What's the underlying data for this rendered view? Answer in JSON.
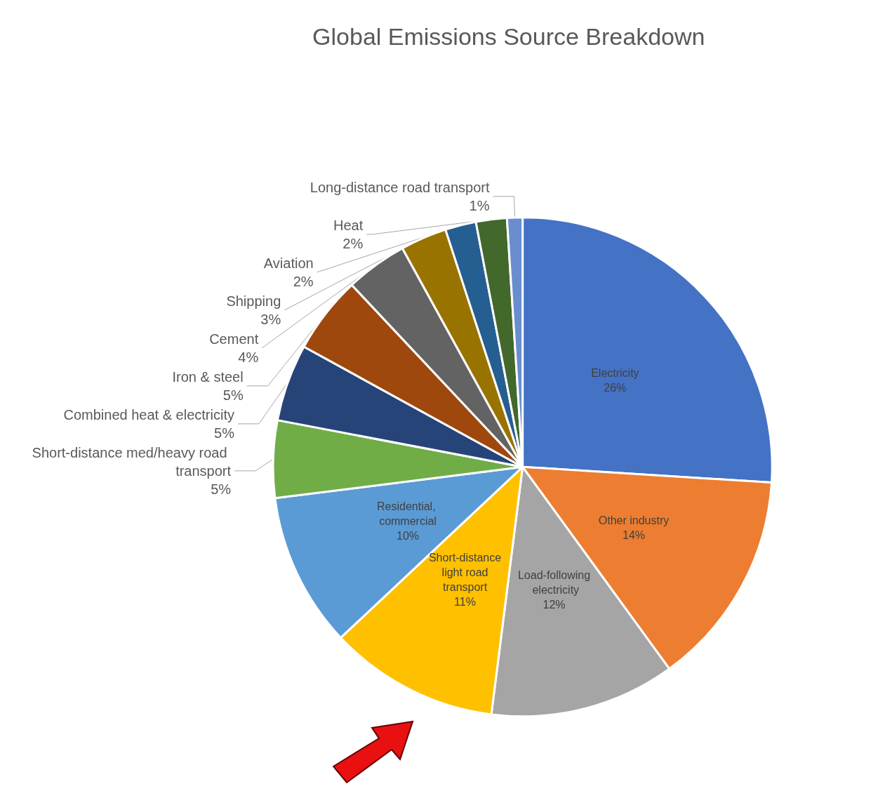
{
  "chart_data": {
    "type": "pie",
    "title": "Global Emissions Source Breakdown",
    "categories": [
      "Electricity",
      "Other industry",
      "Load-following electricity",
      "Short-distance light road transport",
      "Residential, commercial",
      "Short-distance med/heavy road transport",
      "Combined heat & electricity",
      "Iron & steel",
      "Cement",
      "Shipping",
      "Aviation",
      "Heat",
      "Long-distance road transport"
    ],
    "values": [
      26,
      14,
      12,
      11,
      10,
      5,
      5,
      5,
      4,
      3,
      2,
      2,
      1
    ],
    "value_labels": [
      "26%",
      "14%",
      "12%",
      "11%",
      "10%",
      "5%",
      "5%",
      "5%",
      "4%",
      "3%",
      "2%",
      "2%",
      "1%"
    ],
    "colors": [
      "#4472c4",
      "#ed7d31",
      "#a5a5a5",
      "#ffc000",
      "#5b9bd5",
      "#70ad47",
      "#264478",
      "#9e480e",
      "#636363",
      "#997300",
      "#255e91",
      "#43682b",
      "#698ed0"
    ],
    "legend": false
  }
}
